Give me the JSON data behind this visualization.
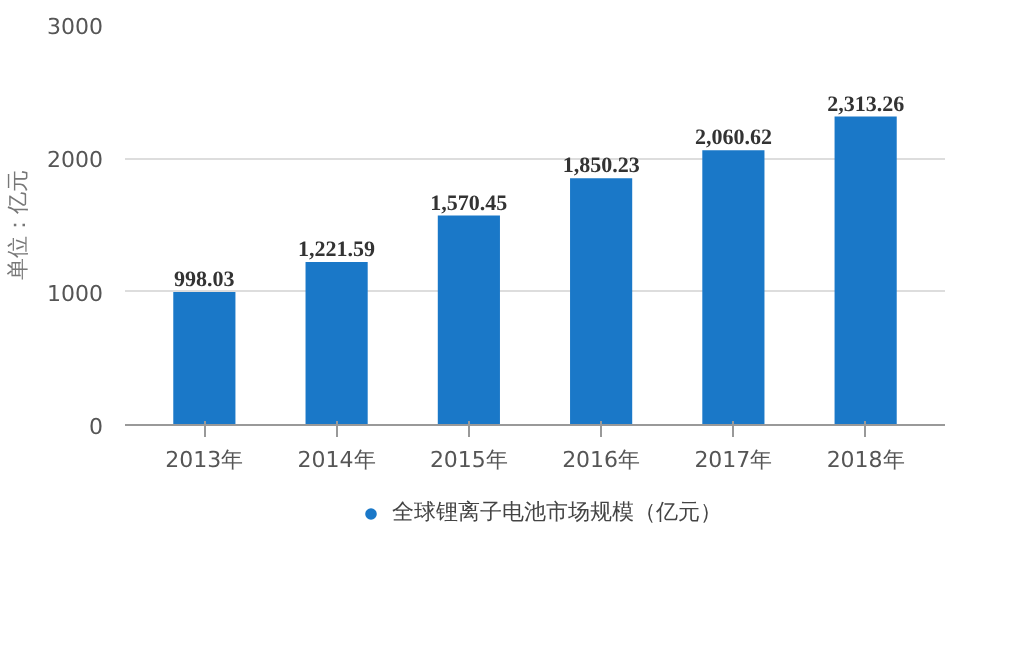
{
  "chart_data": {
    "type": "bar",
    "ylabel": "单位：亿元",
    "categories": [
      "2013年",
      "2014年",
      "2015年",
      "2016年",
      "2017年",
      "2018年"
    ],
    "series": [
      {
        "name": "全球锂离子电池市场规模（亿元）",
        "color": "#1a78c8",
        "values": [
          998.03,
          1221.59,
          1570.45,
          1850.23,
          2060.62,
          2313.26
        ],
        "value_labels": [
          "998.03",
          "1,221.59",
          "1,570.45",
          "1,850.23",
          "2,060.62",
          "2,313.26"
        ]
      }
    ],
    "ylim": [
      0,
      3000
    ],
    "yticks": [
      0,
      1000,
      2000,
      3000
    ],
    "grid": "y",
    "legend": "bottom"
  }
}
